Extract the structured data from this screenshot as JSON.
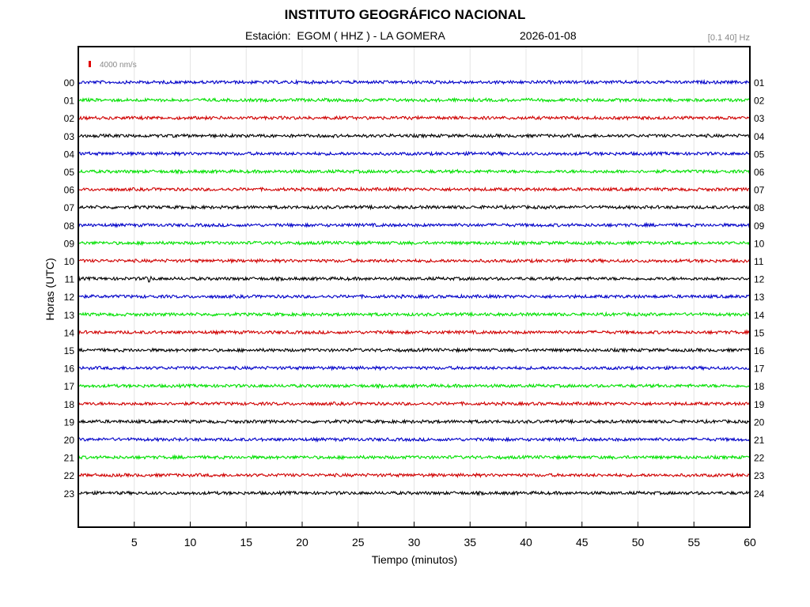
{
  "header": {
    "title": "INSTITUTO GEOGRÁFICO NACIONAL",
    "station": "Estación:  EGOM ( HHZ ) - LA GOMERA",
    "date": "2026-01-08",
    "band": "[0.1 40] Hz"
  },
  "chart_data": {
    "type": "line",
    "title": "INSTITUTO GEOGRÁFICO NACIONAL",
    "xlabel": "Tiempo (minutos)",
    "ylabel": "Horas (UTC)",
    "xlim": [
      0,
      60
    ],
    "x_ticks": [
      5,
      10,
      15,
      20,
      25,
      30,
      35,
      40,
      45,
      50,
      55,
      60
    ],
    "scale_label": "4000 nm/s",
    "scale_color": "#e00000",
    "color_cycle": [
      "#0000c8",
      "#00e000",
      "#d00000",
      "#000000"
    ],
    "left_hours": [
      "00",
      "01",
      "02",
      "03",
      "04",
      "05",
      "06",
      "07",
      "08",
      "09",
      "10",
      "11",
      "12",
      "13",
      "14",
      "15",
      "16",
      "17",
      "18",
      "19",
      "20",
      "21",
      "22",
      "23"
    ],
    "right_hours": [
      "01",
      "02",
      "03",
      "04",
      "05",
      "06",
      "07",
      "08",
      "09",
      "10",
      "11",
      "12",
      "13",
      "14",
      "15",
      "16",
      "17",
      "18",
      "19",
      "20",
      "21",
      "22",
      "23",
      "24"
    ],
    "events": [
      {
        "hour": "11",
        "minute": 6.3
      }
    ]
  }
}
